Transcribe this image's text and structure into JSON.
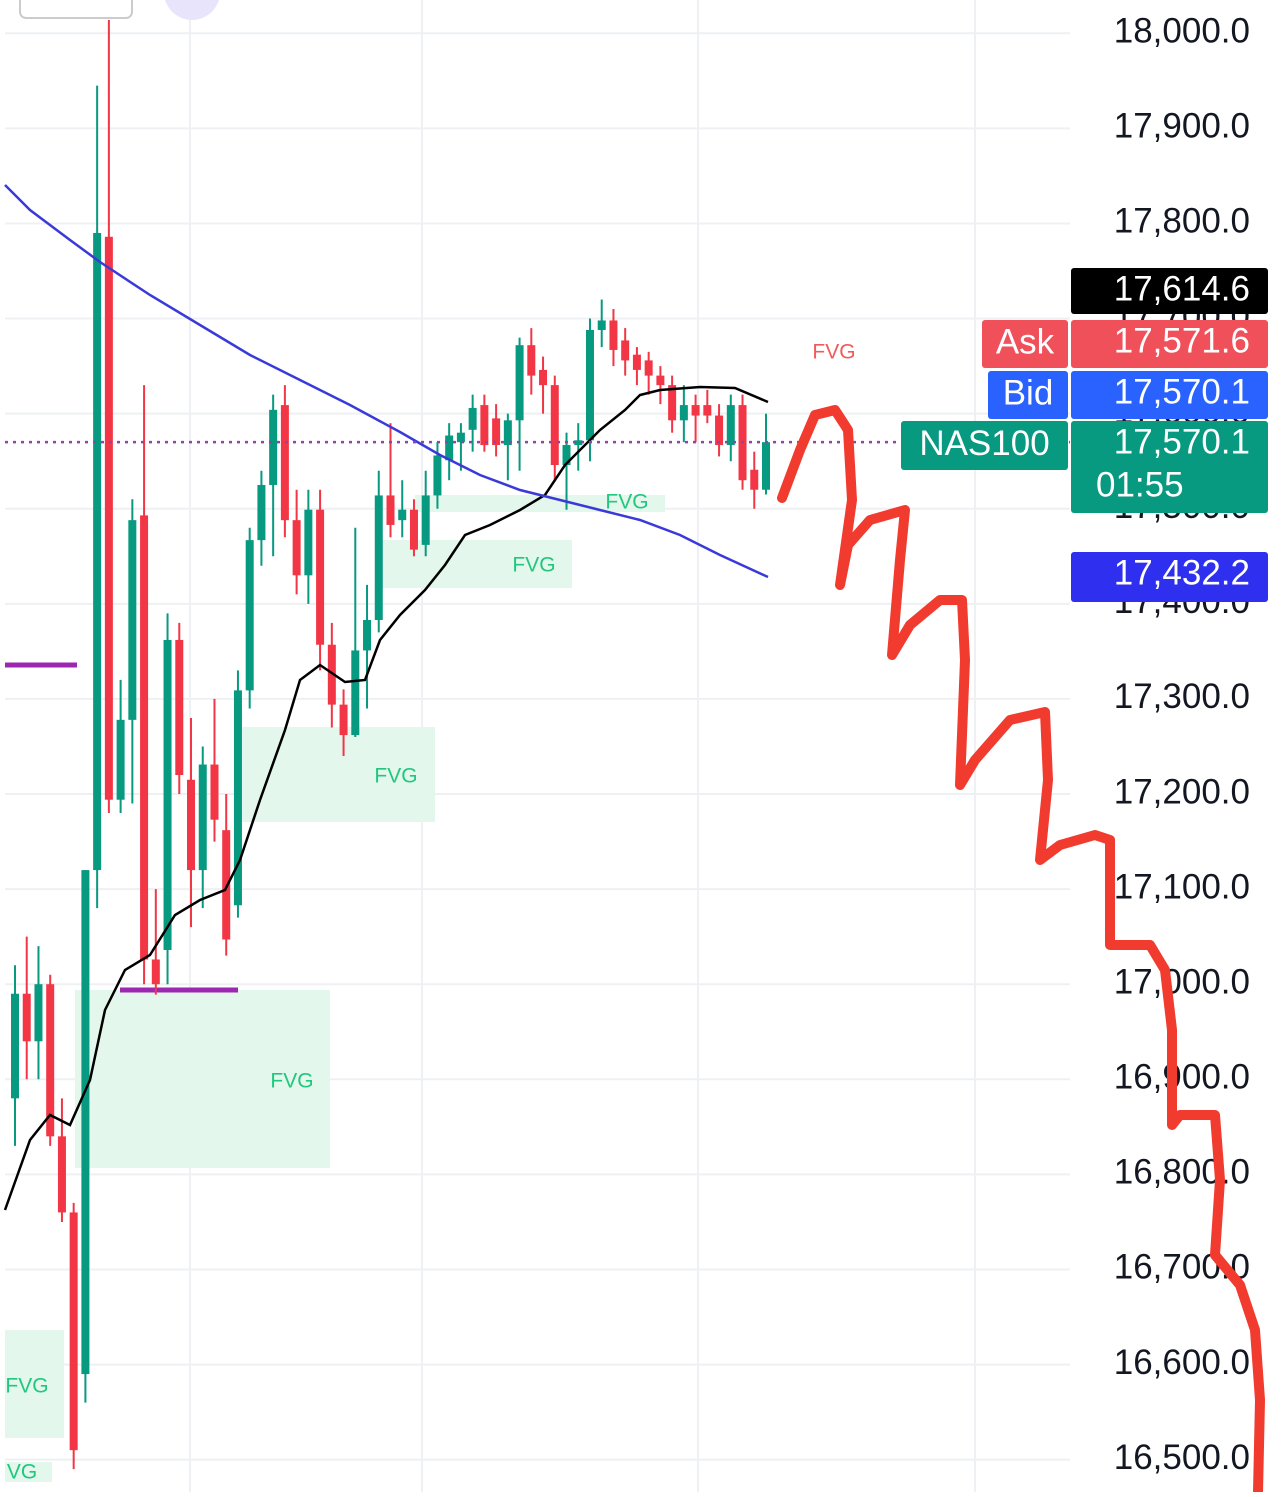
{
  "chart_data": {
    "type": "candlestick",
    "open": [
      16880,
      16990,
      16940,
      17000,
      16840,
      16760,
      16590,
      17120,
      17786,
      17194,
      17278,
      17493,
      17026,
      17036,
      17362,
      17215,
      17120,
      17231,
      17162,
      17083,
      17309,
      17467,
      17525,
      17609,
      17488,
      17430,
      17499,
      17357,
      17294,
      17262,
      17351,
      17383,
      17514,
      17488,
      17499,
      17462,
      17514,
      17551,
      17570,
      17583,
      17609,
      17595,
      17567,
      17593,
      17672,
      17646,
      17630,
      17546,
      17567,
      17572,
      17688,
      17698,
      17677,
      17662,
      17656,
      17640,
      17630,
      17593,
      17609,
      17609,
      17598,
      17567,
      17609,
      17541,
      17520
    ],
    "high": [
      17020,
      17050,
      17040,
      17010,
      16880,
      16770,
      17120,
      17945,
      18014,
      17320,
      17510,
      17630,
      17100,
      17390,
      17380,
      17280,
      17250,
      17300,
      17200,
      17330,
      17480,
      17540,
      17620,
      17630,
      17520,
      17520,
      17520,
      17380,
      17310,
      17480,
      17420,
      17540,
      17590,
      17530,
      17510,
      17540,
      17570,
      17590,
      17590,
      17620,
      17620,
      17610,
      17600,
      17680,
      17690,
      17660,
      17640,
      17580,
      17590,
      17700,
      17720,
      17710,
      17690,
      17670,
      17665,
      17650,
      17640,
      17630,
      17620,
      17625,
      17610,
      17620,
      17620,
      17560,
      17600
    ],
    "low": [
      16830,
      16900,
      16900,
      16830,
      16750,
      16490,
      16560,
      17080,
      17180,
      17180,
      17190,
      17000,
      16989,
      17000,
      17200,
      17060,
      17080,
      17150,
      17030,
      17070,
      17290,
      17440,
      17450,
      17470,
      17410,
      17400,
      17330,
      17270,
      17240,
      17260,
      17290,
      17370,
      17470,
      17470,
      17450,
      17450,
      17500,
      17530,
      17540,
      17560,
      17560,
      17555,
      17530,
      17540,
      17620,
      17600,
      17530,
      17499,
      17540,
      17550,
      17670,
      17650,
      17640,
      17630,
      17620,
      17610,
      17580,
      17570,
      17570,
      17590,
      17555,
      17550,
      17520,
      17500,
      17515
    ],
    "close": [
      16990,
      16940,
      17000,
      16840,
      16760,
      16510,
      17120,
      17790,
      17194,
      17278,
      17488,
      17026,
      17000,
      17362,
      17220,
      17120,
      17231,
      17173,
      17047,
      17309,
      17467,
      17525,
      17604,
      17488,
      17430,
      17499,
      17357,
      17294,
      17262,
      17351,
      17383,
      17514,
      17483,
      17499,
      17457,
      17514,
      17556,
      17577,
      17580,
      17606,
      17567,
      17567,
      17593,
      17672,
      17640,
      17630,
      17546,
      17567,
      17572,
      17688,
      17698,
      17667,
      17656,
      17646,
      17640,
      17630,
      17593,
      17609,
      17598,
      17598,
      17567,
      17609,
      17530,
      17520,
      17570
    ],
    "up_color": "#089981",
    "down_color": "#f23645",
    "ylim": [
      16466,
      18035
    ],
    "yticks": [
      {
        "value": 16500,
        "label": "16,500.0"
      },
      {
        "value": 16600,
        "label": "16,600.0"
      },
      {
        "value": 16700,
        "label": "16,700.0"
      },
      {
        "value": 16800,
        "label": "16,800.0"
      },
      {
        "value": 16900,
        "label": "16,900.0"
      },
      {
        "value": 17000,
        "label": "17,000.0"
      },
      {
        "value": 17100,
        "label": "17,100.0"
      },
      {
        "value": 17200,
        "label": "17,200.0"
      },
      {
        "value": 17300,
        "label": "17,300.0"
      },
      {
        "value": 17400,
        "label": "17,400.0"
      },
      {
        "value": 17500,
        "label": "17,500.0"
      },
      {
        "value": 17600,
        "label": "17,600.0"
      },
      {
        "value": 17700,
        "label": "17,700.0"
      },
      {
        "value": 17800,
        "label": "17,800.0"
      },
      {
        "value": 17900,
        "label": "17,900.0"
      },
      {
        "value": 18000,
        "label": "18,000.0"
      }
    ],
    "grid": true,
    "price_tags": [
      {
        "value": 17614.6,
        "label": "17,614.6",
        "color": "#000000"
      },
      {
        "name": "Ask",
        "value": 17571.6,
        "label": "17,571.6",
        "color": "#f0505a"
      },
      {
        "name": "Bid",
        "value": 17570.1,
        "label": "17,570.1",
        "color": "#2962ff"
      },
      {
        "name": "NAS100",
        "value": 17570.1,
        "label": "17,570.1",
        "countdown": "01:55",
        "color": "#089981"
      },
      {
        "value": 17432.2,
        "label": "17,432.2",
        "color": "#2f2ff0"
      }
    ],
    "annotations": [
      "FVG",
      "FVG",
      "FVG",
      "FVG",
      "FVG",
      "FVG",
      "VG"
    ]
  }
}
